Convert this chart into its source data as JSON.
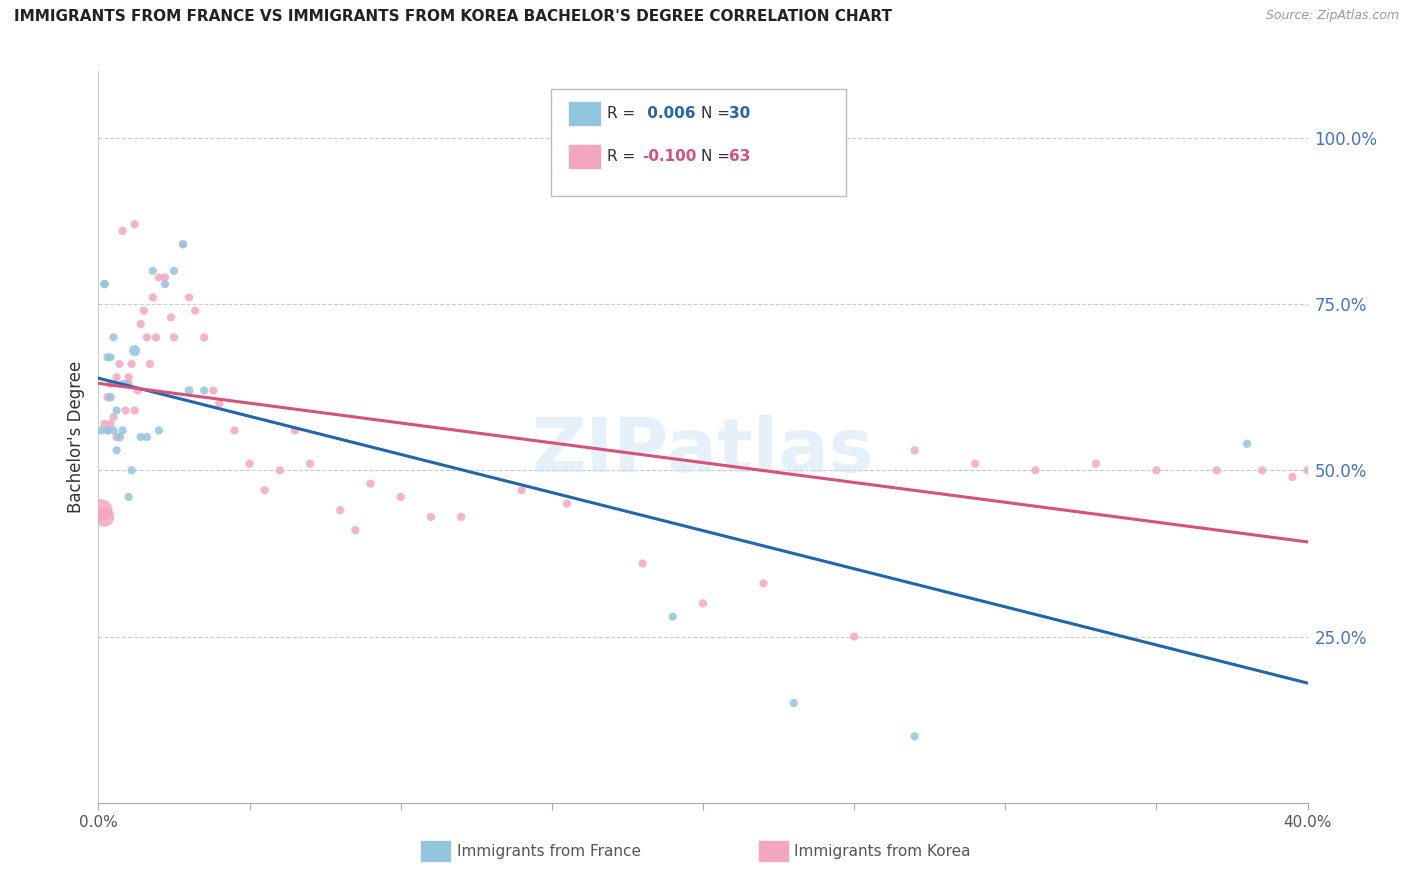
{
  "title": "IMMIGRANTS FROM FRANCE VS IMMIGRANTS FROM KOREA BACHELOR'S DEGREE CORRELATION CHART",
  "source": "Source: ZipAtlas.com",
  "ylabel": "Bachelor's Degree",
  "watermark": "ZIPatlas",
  "france_R": 0.006,
  "france_N": 30,
  "korea_R": -0.1,
  "korea_N": 63,
  "france_color": "#92c5de",
  "korea_color": "#f4a6c0",
  "france_line_color": "#2166ac",
  "korea_line_color": "#d6527a",
  "right_ytick_vals": [
    0.25,
    0.5,
    0.75,
    1.0
  ],
  "right_ytick_labels": [
    "25.0%",
    "50.0%",
    "75.0%",
    "100.0%"
  ],
  "xlim": [
    0.0,
    0.4
  ],
  "ylim": [
    0.0,
    1.1
  ],
  "france_x": [
    0.001,
    0.002,
    0.002,
    0.003,
    0.003,
    0.004,
    0.004,
    0.005,
    0.005,
    0.006,
    0.006,
    0.007,
    0.008,
    0.009,
    0.01,
    0.011,
    0.012,
    0.014,
    0.016,
    0.018,
    0.02,
    0.022,
    0.025,
    0.028,
    0.03,
    0.035,
    0.19,
    0.23,
    0.27,
    0.38
  ],
  "france_y": [
    0.56,
    0.78,
    0.78,
    0.67,
    0.56,
    0.61,
    0.67,
    0.7,
    0.56,
    0.53,
    0.59,
    0.55,
    0.56,
    0.63,
    0.46,
    0.5,
    0.68,
    0.55,
    0.55,
    0.8,
    0.56,
    0.78,
    0.8,
    0.84,
    0.62,
    0.62,
    0.28,
    0.15,
    0.1,
    0.54
  ],
  "france_size": [
    35,
    35,
    35,
    35,
    35,
    40,
    35,
    35,
    35,
    35,
    35,
    40,
    35,
    35,
    35,
    35,
    65,
    35,
    35,
    35,
    35,
    35,
    35,
    35,
    40,
    35,
    35,
    35,
    35,
    35
  ],
  "korea_x": [
    0.001,
    0.002,
    0.003,
    0.003,
    0.004,
    0.004,
    0.005,
    0.006,
    0.006,
    0.007,
    0.008,
    0.009,
    0.01,
    0.01,
    0.011,
    0.012,
    0.013,
    0.014,
    0.015,
    0.016,
    0.017,
    0.018,
    0.019,
    0.02,
    0.022,
    0.024,
    0.025,
    0.028,
    0.03,
    0.032,
    0.035,
    0.038,
    0.04,
    0.045,
    0.05,
    0.055,
    0.06,
    0.065,
    0.07,
    0.08,
    0.085,
    0.09,
    0.1,
    0.11,
    0.12,
    0.14,
    0.155,
    0.18,
    0.2,
    0.22,
    0.25,
    0.27,
    0.29,
    0.31,
    0.33,
    0.35,
    0.37,
    0.385,
    0.395,
    0.4,
    0.008,
    0.012,
    0.002
  ],
  "korea_y": [
    0.44,
    0.57,
    0.56,
    0.61,
    0.57,
    0.63,
    0.58,
    0.64,
    0.55,
    0.66,
    0.63,
    0.59,
    0.64,
    0.63,
    0.66,
    0.59,
    0.62,
    0.72,
    0.74,
    0.7,
    0.66,
    0.76,
    0.7,
    0.79,
    0.79,
    0.73,
    0.7,
    0.84,
    0.76,
    0.74,
    0.7,
    0.62,
    0.6,
    0.56,
    0.51,
    0.47,
    0.5,
    0.56,
    0.51,
    0.44,
    0.41,
    0.48,
    0.46,
    0.43,
    0.43,
    0.47,
    0.45,
    0.36,
    0.3,
    0.33,
    0.25,
    0.53,
    0.51,
    0.5,
    0.51,
    0.5,
    0.5,
    0.5,
    0.49,
    0.5,
    0.86,
    0.87,
    0.43
  ],
  "korea_size": [
    250,
    35,
    35,
    35,
    35,
    35,
    35,
    35,
    35,
    35,
    35,
    35,
    35,
    35,
    35,
    35,
    35,
    35,
    35,
    35,
    35,
    35,
    35,
    35,
    35,
    35,
    35,
    35,
    35,
    35,
    35,
    35,
    35,
    35,
    35,
    35,
    35,
    35,
    35,
    35,
    35,
    35,
    35,
    35,
    35,
    35,
    35,
    35,
    35,
    35,
    35,
    35,
    35,
    35,
    35,
    35,
    35,
    35,
    35,
    35,
    35,
    35,
    200
  ]
}
